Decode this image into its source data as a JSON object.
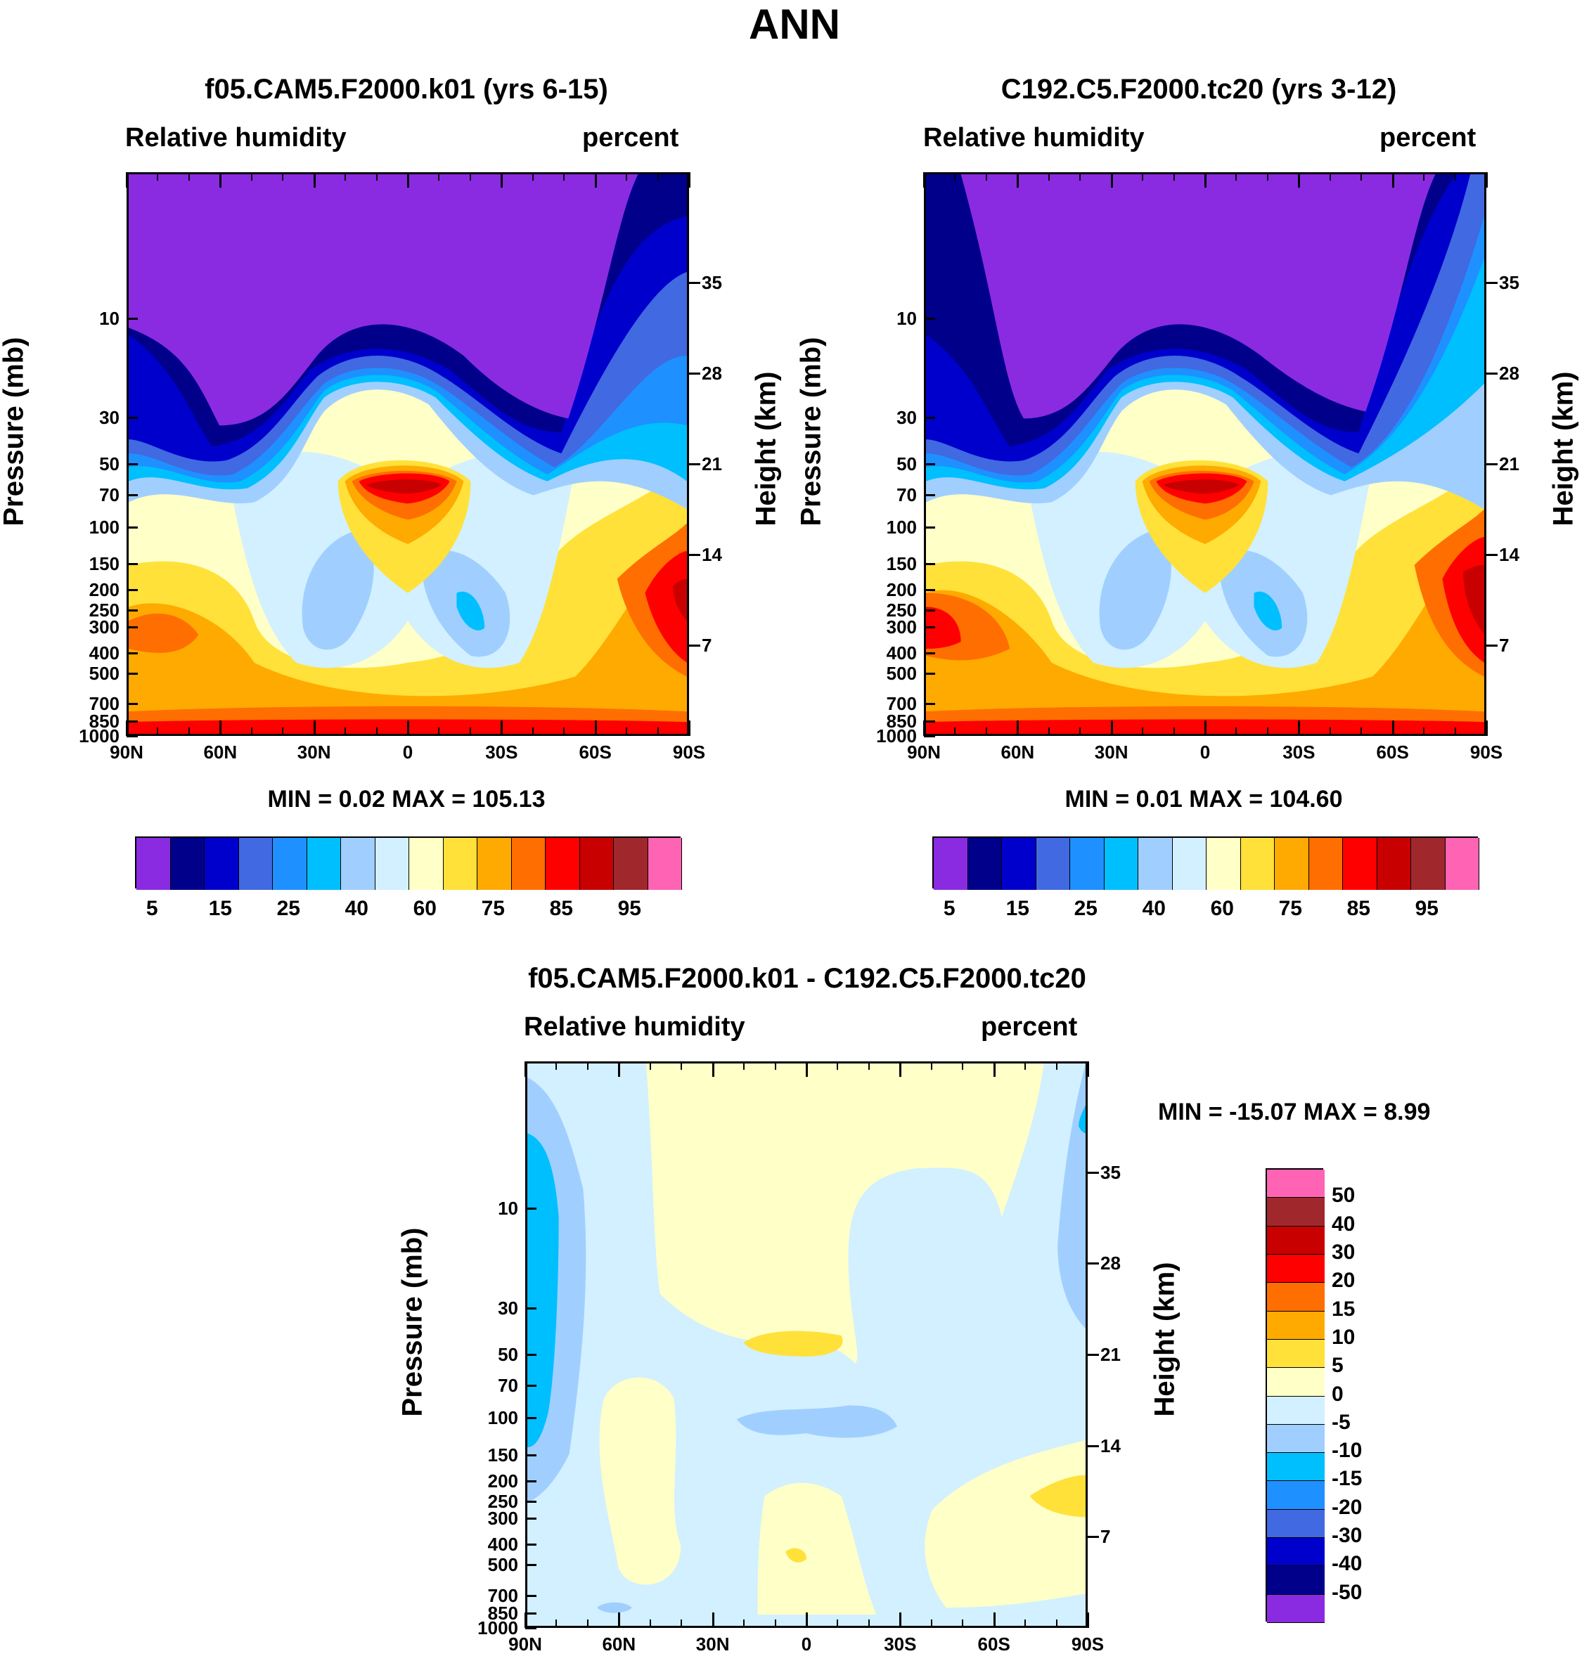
{
  "figure_title": "ANN",
  "panel_a": {
    "title": "f05.CAM5.F2000.k01 (yrs 6-15)",
    "left_label": "Relative humidity",
    "right_label": "percent",
    "stats": "MIN =   0.02  MAX = 105.13"
  },
  "panel_b": {
    "title": "C192.C5.F2000.tc20 (yrs 3-12)",
    "left_label": "Relative humidity",
    "right_label": "percent",
    "stats": "MIN =   0.01  MAX = 104.60"
  },
  "panel_c": {
    "title": "f05.CAM5.F2000.k01 - C192.C5.F2000.tc20",
    "left_label": "Relative humidity",
    "right_label": "percent",
    "stats": "MIN = -15.07  MAX =   8.99"
  },
  "axes": {
    "ylabel": "Pressure (mb)",
    "y2label": "Height (km)",
    "pressure_ticks": [
      "10",
      "30",
      "50",
      "70",
      "100",
      "150",
      "200",
      "250",
      "300",
      "400",
      "500",
      "700",
      "850",
      "1000"
    ],
    "height_ticks": [
      "35",
      "28",
      "21",
      "14",
      "7"
    ],
    "lat_ticks": [
      "90N",
      "60N",
      "30N",
      "0",
      "30S",
      "60S",
      "90S"
    ]
  },
  "colorbar_main": {
    "colors": [
      "#8A2BE2",
      "#00008B",
      "#0000CD",
      "#4169E1",
      "#1E90FF",
      "#00BFFF",
      "#A0CFFF",
      "#D2F0FF",
      "#FFFFC8",
      "#FFE139",
      "#FFAA00",
      "#FF6E00",
      "#FF0000",
      "#C80000",
      "#A0282D",
      "#FF64B4"
    ],
    "labels": [
      "5",
      "15",
      "25",
      "40",
      "60",
      "75",
      "85",
      "95"
    ]
  },
  "colorbar_diff": {
    "colors": [
      "#FF64B4",
      "#A0282D",
      "#C80000",
      "#FF0000",
      "#FF6E00",
      "#FFAA00",
      "#FFE139",
      "#FFFFC8",
      "#D2F0FF",
      "#A0CFFF",
      "#00BFFF",
      "#1E90FF",
      "#4169E1",
      "#0000CD",
      "#00008B",
      "#8A2BE2"
    ],
    "labels": [
      "50",
      "40",
      "30",
      "20",
      "15",
      "10",
      "5",
      "0",
      "-5",
      "-10",
      "-15",
      "-20",
      "-30",
      "-40",
      "-50"
    ]
  },
  "chart_data": [
    {
      "type": "heatmap",
      "title": "f05.CAM5.F2000.k01 (yrs 6-15)",
      "xlabel": "",
      "ylabel": "Pressure (mb)",
      "y2label": "Height (km)",
      "x": [
        "90N",
        "60N",
        "30N",
        "0",
        "30S",
        "60S",
        "90S"
      ],
      "y": [
        10,
        30,
        50,
        70,
        100,
        150,
        200,
        250,
        300,
        400,
        500,
        700,
        850,
        1000
      ],
      "min": 0.02,
      "max": 105.13,
      "levels": [
        5,
        10,
        15,
        20,
        25,
        30,
        40,
        50,
        60,
        70,
        75,
        80,
        85,
        90,
        95
      ]
    },
    {
      "type": "heatmap",
      "title": "C192.C5.F2000.tc20 (yrs 3-12)",
      "xlabel": "",
      "ylabel": "Pressure (mb)",
      "y2label": "Height (km)",
      "x": [
        "90N",
        "60N",
        "30N",
        "0",
        "30S",
        "60S",
        "90S"
      ],
      "y": [
        10,
        30,
        50,
        70,
        100,
        150,
        200,
        250,
        300,
        400,
        500,
        700,
        850,
        1000
      ],
      "min": 0.01,
      "max": 104.6,
      "levels": [
        5,
        10,
        15,
        20,
        25,
        30,
        40,
        50,
        60,
        70,
        75,
        80,
        85,
        90,
        95
      ]
    },
    {
      "type": "heatmap",
      "title": "f05.CAM5.F2000.k01 - C192.C5.F2000.tc20",
      "xlabel": "",
      "ylabel": "Pressure (mb)",
      "y2label": "Height (km)",
      "x": [
        "90N",
        "60N",
        "30N",
        "0",
        "30S",
        "60S",
        "90S"
      ],
      "y": [
        10,
        30,
        50,
        70,
        100,
        150,
        200,
        250,
        300,
        400,
        500,
        700,
        850,
        1000
      ],
      "min": -15.07,
      "max": 8.99,
      "levels": [
        -50,
        -40,
        -30,
        -20,
        -15,
        -10,
        -5,
        0,
        5,
        10,
        15,
        20,
        30,
        40,
        50
      ]
    }
  ]
}
